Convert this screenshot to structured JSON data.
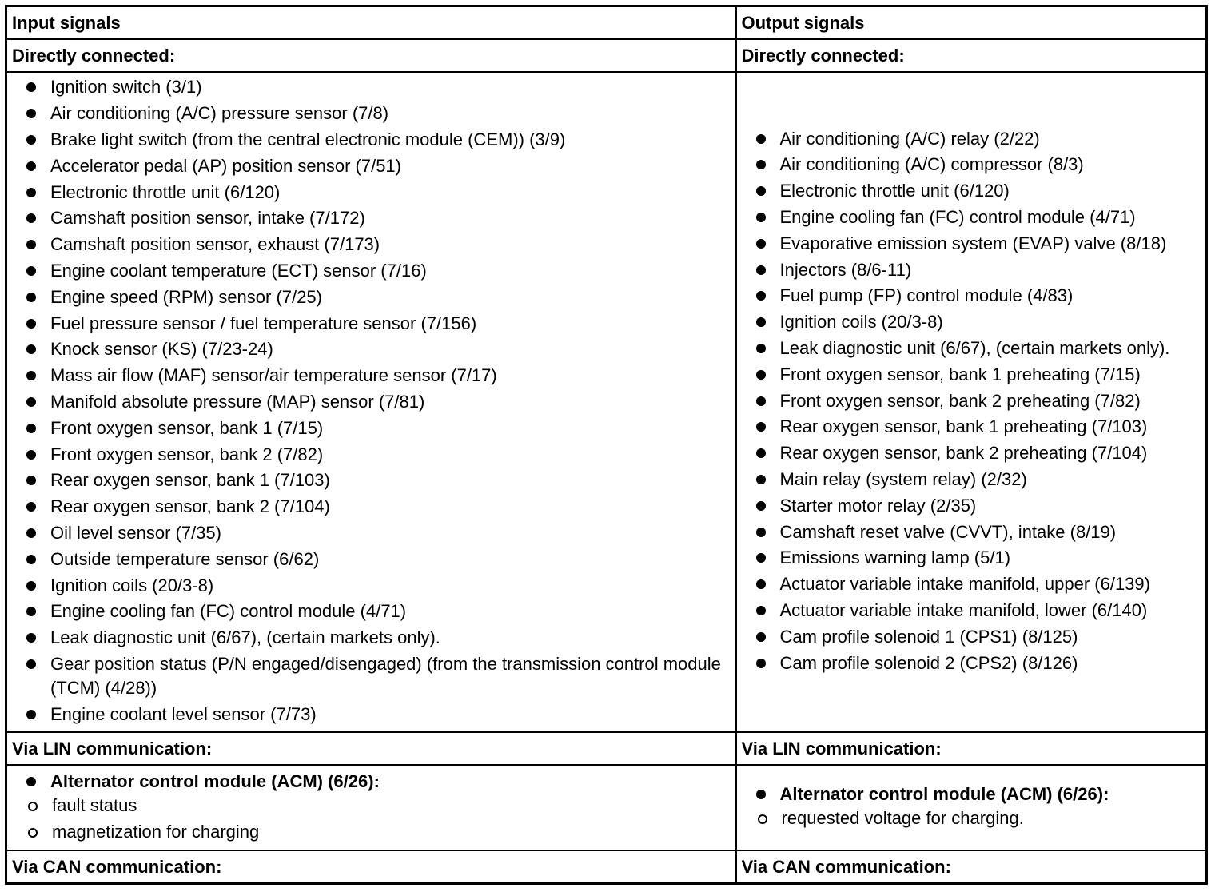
{
  "table": {
    "header": [
      "Input signals",
      "Output signals"
    ],
    "sections": [
      {
        "title": [
          "Directly connected:",
          "Directly connected:"
        ],
        "items": [
          [
            "Ignition switch (3/1)",
            "Air conditioning (A/C) pressure sensor (7/8)",
            "Brake light switch (from the central electronic module (CEM)) (3/9)",
            "Accelerator pedal (AP) position sensor (7/51)",
            "Electronic throttle unit (6/120)",
            "Camshaft position sensor, intake (7/172)",
            "Camshaft position sensor, exhaust (7/173)",
            "Engine coolant temperature (ECT) sensor (7/16)",
            "Engine speed (RPM) sensor (7/25)",
            "Fuel pressure sensor / fuel temperature sensor (7/156)",
            "Knock sensor (KS) (7/23-24)",
            "Mass air flow (MAF) sensor/air temperature sensor (7/17)",
            "Manifold absolute pressure (MAP) sensor (7/81)",
            "Front oxygen sensor, bank 1 (7/15)",
            "Front oxygen sensor, bank 2 (7/82)",
            "Rear oxygen sensor, bank 1 (7/103)",
            "Rear oxygen sensor, bank 2 (7/104)",
            "Oil level sensor (7/35)",
            "Outside temperature sensor (6/62)",
            "Ignition coils (20/3-8)",
            "Engine cooling fan (FC) control module (4/71)",
            "Leak diagnostic unit (6/67), (certain markets only).",
            "Gear position status (P/N engaged/disengaged) (from the transmission control module (TCM) (4/28))",
            "Engine coolant level sensor (7/73)"
          ],
          [
            "Air conditioning (A/C) relay (2/22)",
            "Air conditioning (A/C) compressor (8/3)",
            "Electronic throttle unit (6/120)",
            "Engine cooling fan (FC) control module (4/71)",
            "Evaporative emission system (EVAP) valve (8/18)",
            "Injectors (8/6-11)",
            "Fuel pump (FP) control module (4/83)",
            "Ignition coils (20/3-8)",
            "Leak diagnostic unit (6/67), (certain markets only).",
            "Front oxygen sensor, bank 1 preheating (7/15)",
            "Front oxygen sensor, bank 2 preheating (7/82)",
            "Rear oxygen sensor, bank 1 preheating (7/103)",
            "Rear oxygen sensor, bank 2 preheating (7/104)",
            "Main relay (system relay) (2/32)",
            "Starter motor relay (2/35)",
            "Camshaft reset valve (CVVT), intake (8/19)",
            "Emissions warning lamp (5/1)",
            "Actuator variable intake manifold, upper (6/139)",
            "Actuator variable intake manifold, lower (6/140)",
            "Cam profile solenoid 1 (CPS1) (8/125)",
            "Cam profile solenoid 2 (CPS2) (8/126)"
          ]
        ]
      },
      {
        "title": [
          "Via LIN communication:",
          "Via LIN communication:"
        ],
        "items": [
          [
            {
              "text": "Alternator control module (ACM) (6/26):",
              "subitems": [
                "fault status",
                "magnetization for charging"
              ]
            }
          ],
          [
            {
              "text": "Alternator control module (ACM) (6/26):",
              "subitems": [
                "requested voltage for charging."
              ]
            }
          ]
        ]
      },
      {
        "title": [
          "Via CAN communication:",
          "Via CAN communication:"
        ]
      }
    ]
  }
}
